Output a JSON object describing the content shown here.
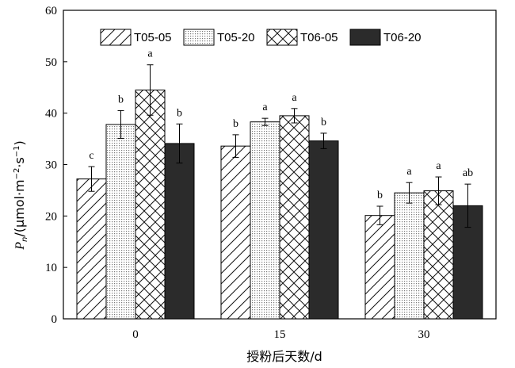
{
  "chart_data": {
    "type": "bar",
    "xlabel": "授粉后天数/d",
    "ylabel_main": "P",
    "ylabel_sub": "n",
    "ylabel_unit_pre": "/(μmol·m",
    "ylabel_sup1": "−2",
    "ylabel_mid": "·s",
    "ylabel_sup2": "−1",
    "ylabel_close": ")",
    "ylim": [
      0,
      60
    ],
    "yticks": [
      0,
      10,
      20,
      30,
      40,
      50,
      60
    ],
    "categories": [
      "0",
      "15",
      "30"
    ],
    "legend_position": "top-center",
    "series": [
      {
        "name": "T05-05",
        "pattern": "diagonal",
        "values": [
          27.2,
          33.6,
          20.1
        ],
        "errors": [
          2.4,
          2.2,
          1.8
        ],
        "labels": [
          "c",
          "b",
          "b"
        ]
      },
      {
        "name": "T05-20",
        "pattern": "dots",
        "values": [
          37.8,
          38.3,
          24.5
        ],
        "errors": [
          2.7,
          0.7,
          2.0
        ],
        "labels": [
          "b",
          "a",
          "a"
        ]
      },
      {
        "name": "T06-05",
        "pattern": "crosshatch",
        "values": [
          44.5,
          39.5,
          24.9
        ],
        "errors": [
          4.9,
          1.4,
          2.7
        ],
        "labels": [
          "a",
          "a",
          "a"
        ]
      },
      {
        "name": "T06-20",
        "pattern": "solid",
        "values": [
          34.1,
          34.6,
          22.0
        ],
        "errors": [
          3.8,
          1.5,
          4.2
        ],
        "labels": [
          "b",
          "b",
          "ab"
        ]
      }
    ]
  }
}
